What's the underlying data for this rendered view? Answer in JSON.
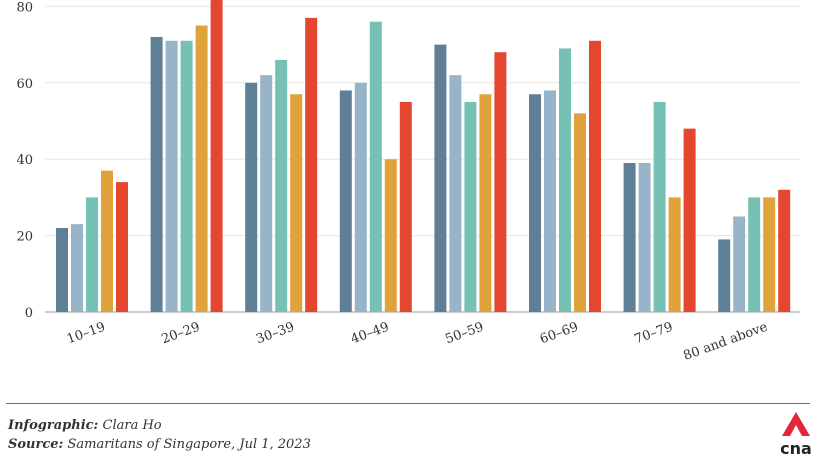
{
  "chart_data": {
    "type": "bar",
    "categories": [
      "10–19",
      "20–29",
      "30–39",
      "40–49",
      "50–59",
      "60–69",
      "70–79",
      "80 and above"
    ],
    "series": [
      {
        "values": [
          22,
          72,
          60,
          58,
          70,
          57,
          39,
          19
        ]
      },
      {
        "values": [
          23,
          71,
          62,
          60,
          62,
          58,
          39,
          25
        ]
      },
      {
        "values": [
          30,
          71,
          66,
          76,
          55,
          69,
          55,
          30
        ]
      },
      {
        "values": [
          37,
          75,
          57,
          40,
          57,
          52,
          30,
          30
        ]
      },
      {
        "values": [
          34,
          85,
          77,
          55,
          68,
          71,
          48,
          32
        ]
      }
    ],
    "colors": [
      "#5e7f95",
      "#98b4c8",
      "#76c1b3",
      "#e0a23b",
      "#e5462f"
    ],
    "yticks": [
      "0",
      "20",
      "40",
      "60",
      "80"
    ],
    "ylim": [
      0,
      80
    ],
    "grid": true
  },
  "footer": {
    "infographic_label": "Infographic:",
    "infographic_value": "Clara Ho",
    "source_label": "Source:",
    "source_value": "Samaritans of Singapore, Jul 1, 2023"
  },
  "logo": {
    "text": "cna",
    "color": "#e3263b"
  }
}
